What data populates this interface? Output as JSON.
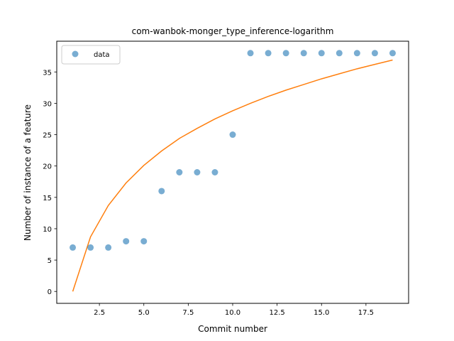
{
  "chart_data": {
    "type": "scatter",
    "title": "com-wanbok-monger_type_inference-logarithm",
    "xlabel": "Commit number",
    "ylabel": "Number of instance of a feature",
    "xlim": [
      0.1,
      19.9
    ],
    "ylim": [
      -1.9,
      39.9
    ],
    "xticks": [
      2.5,
      5.0,
      7.5,
      10.0,
      12.5,
      15.0,
      17.5
    ],
    "xtick_labels": [
      "2.5",
      "5.0",
      "7.5",
      "10.0",
      "12.5",
      "15.0",
      "17.5"
    ],
    "yticks": [
      0,
      5,
      10,
      15,
      20,
      25,
      30,
      35
    ],
    "ytick_labels": [
      "0",
      "5",
      "10",
      "15",
      "20",
      "25",
      "30",
      "35"
    ],
    "grid": false,
    "legend_position": "upper-left",
    "series": [
      {
        "name": "data",
        "kind": "scatter",
        "color": "#1f77b4",
        "x": [
          1,
          2,
          3,
          4,
          5,
          6,
          7,
          8,
          9,
          10,
          11,
          12,
          13,
          14,
          15,
          16,
          17,
          18,
          19
        ],
        "y": [
          7,
          7,
          7,
          8,
          8,
          16,
          19,
          19,
          19,
          25,
          38,
          38,
          38,
          38,
          38,
          38,
          38,
          38,
          38
        ]
      },
      {
        "kind": "line",
        "color": "#ff7f0e",
        "x": [
          1,
          2,
          3,
          4,
          5,
          6,
          7,
          8,
          9,
          10,
          11,
          12,
          13,
          14,
          15,
          16,
          17,
          18,
          19
        ],
        "y": [
          0,
          8.7,
          13.7,
          17.3,
          20.1,
          22.4,
          24.4,
          26.0,
          27.5,
          28.8,
          30.0,
          31.1,
          32.1,
          33.0,
          33.9,
          34.7,
          35.5,
          36.2,
          36.9
        ]
      }
    ]
  }
}
